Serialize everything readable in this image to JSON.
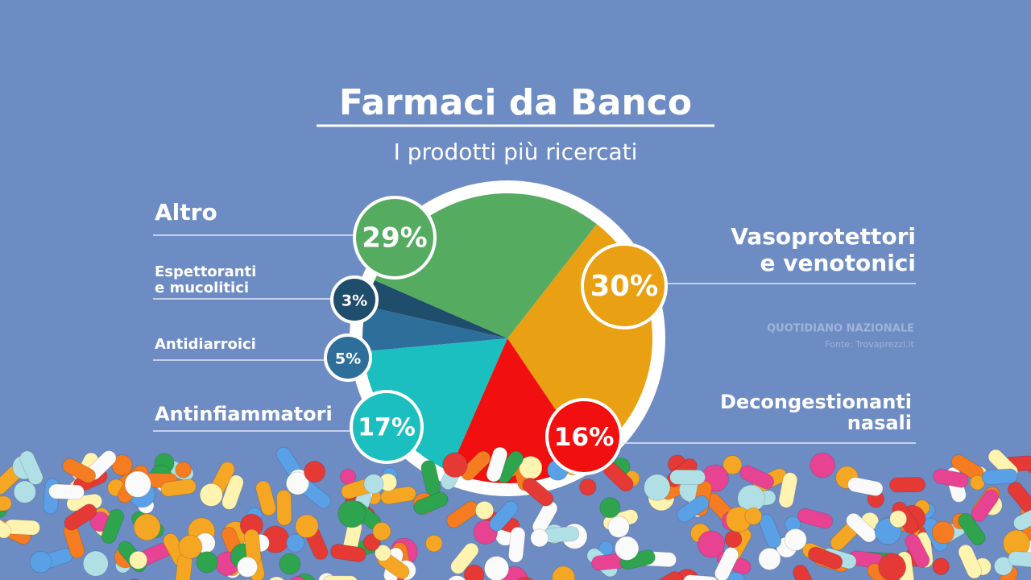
{
  "chart_data": {
    "type": "pie",
    "title": "Farmaci da Banco",
    "subtitle": "I prodotti più ricercati",
    "categories": [
      "Vasoprotettori\ne venotonici",
      "Decongestionanti\nnasali",
      "Antinfiammatori",
      "Antidiarroici",
      "Espettoranti\ne mucolitici",
      "Altro"
    ],
    "values": [
      30,
      16,
      17,
      5,
      3,
      29
    ],
    "value_labels": [
      "30%",
      "16%",
      "17%",
      "5%",
      "3%",
      "29%"
    ],
    "colors": [
      "#e9a012",
      "#f20f0f",
      "#1cbfbf",
      "#2d6e9b",
      "#1f4d6c",
      "#55ab5f"
    ],
    "source_brand": "QUOTIDIANO NAZIONALE",
    "source": "Fonte: Trovaprezzi.it"
  }
}
